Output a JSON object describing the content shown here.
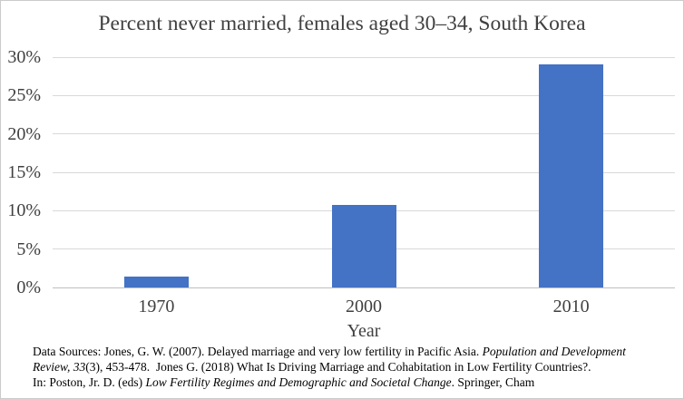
{
  "chart": {
    "title": "Percent never married, females aged 30–34, South Korea",
    "xlabel": "Year"
  },
  "chart_data": {
    "type": "bar",
    "title": "Percent never married, females aged 30–34, South Korea",
    "categories": [
      "1970",
      "2000",
      "2010"
    ],
    "values": [
      1.4,
      10.7,
      29
    ],
    "xlabel": "Year",
    "ylabel": "",
    "ylim": [
      0,
      30
    ],
    "ytick_step": 5,
    "ytick_suffix": "%",
    "grid": true,
    "legend": "none",
    "bar_color": "#4472C4",
    "gridline_color": "#D9D9D9",
    "axis_line_color": "#BFBFBF",
    "text_color": "#404040"
  },
  "footnote": {
    "lines": [
      [
        {
          "text": "Data Sources: Jones, G. W. (2007). Delayed marriage and very low fertility in Pacific Asia. ",
          "italic": false
        },
        {
          "text": "Population and Development",
          "italic": true
        }
      ],
      [
        {
          "text": "Review, 33",
          "italic": true
        },
        {
          "text": "(3), 453-478.  Jones G. (2018) What Is Driving Marriage and Cohabitation in Low Fertility Countries?.",
          "italic": false
        }
      ],
      [
        {
          "text": "In: Poston, Jr. D. (eds) ",
          "italic": false
        },
        {
          "text": "Low Fertility Regimes and Demographic and Societal Change",
          "italic": true
        },
        {
          "text": ". Springer, Cham",
          "italic": false
        }
      ]
    ]
  }
}
